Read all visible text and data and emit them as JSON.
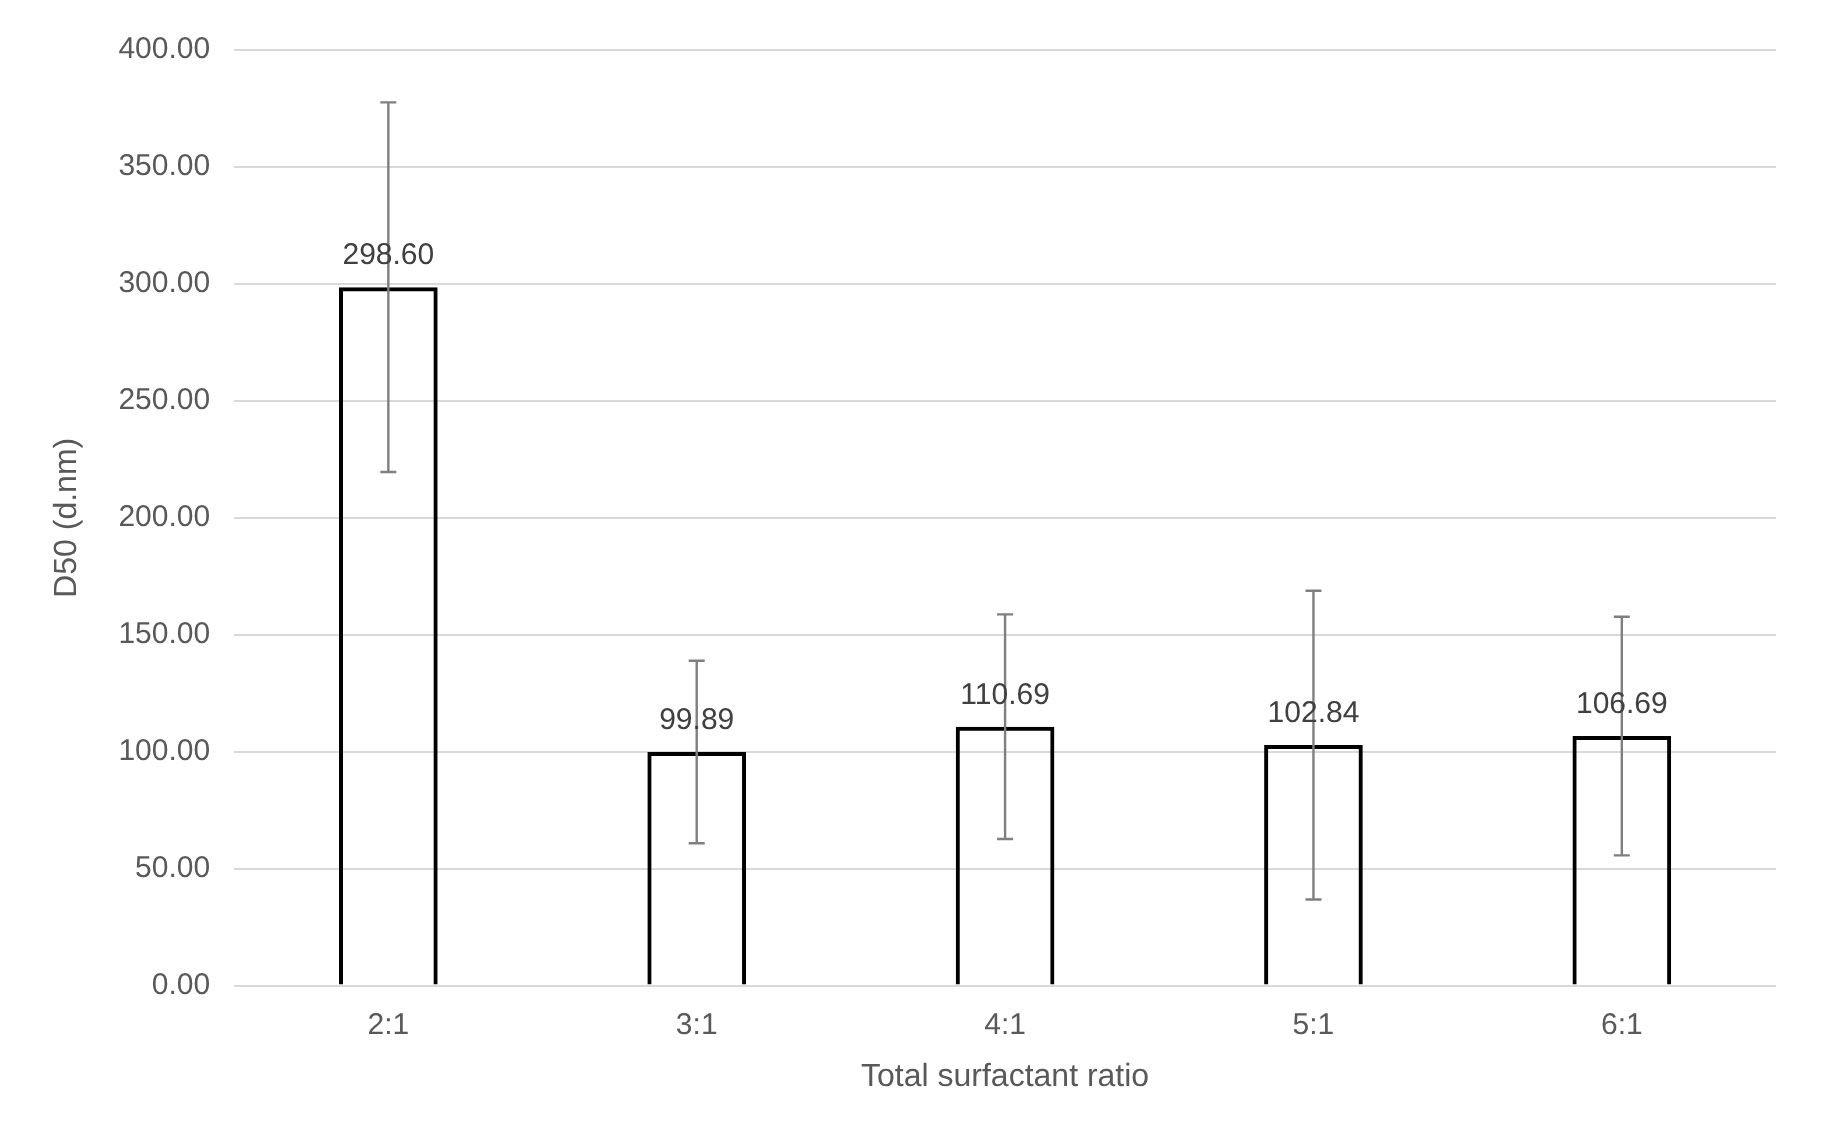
{
  "chart_data": {
    "type": "bar",
    "xlabel": "Total surfactant ratio",
    "ylabel": "D50 (d.nm)",
    "categories": [
      "2:1",
      "3:1",
      "4:1",
      "5:1",
      "6:1"
    ],
    "values": [
      298.6,
      99.89,
      110.69,
      102.84,
      106.69
    ],
    "errors": [
      79,
      39,
      48,
      66,
      51
    ],
    "color": "#000000",
    "value_labels": [
      "298.60",
      "99.89",
      "110.69",
      "102.84",
      "106.69"
    ],
    "ylim": [
      0,
      400
    ],
    "yticks": [
      {
        "value": 0,
        "label": "0.00"
      },
      {
        "value": 50,
        "label": "50.00"
      },
      {
        "value": 100,
        "label": "100.00"
      },
      {
        "value": 150,
        "label": "150.00"
      },
      {
        "value": 200,
        "label": "200.00"
      },
      {
        "value": 250,
        "label": "250.00"
      },
      {
        "value": 300,
        "label": "300.00"
      },
      {
        "value": 350,
        "label": "350.00"
      },
      {
        "value": 400,
        "label": "400.00"
      }
    ],
    "grid": "y",
    "legend": false
  }
}
